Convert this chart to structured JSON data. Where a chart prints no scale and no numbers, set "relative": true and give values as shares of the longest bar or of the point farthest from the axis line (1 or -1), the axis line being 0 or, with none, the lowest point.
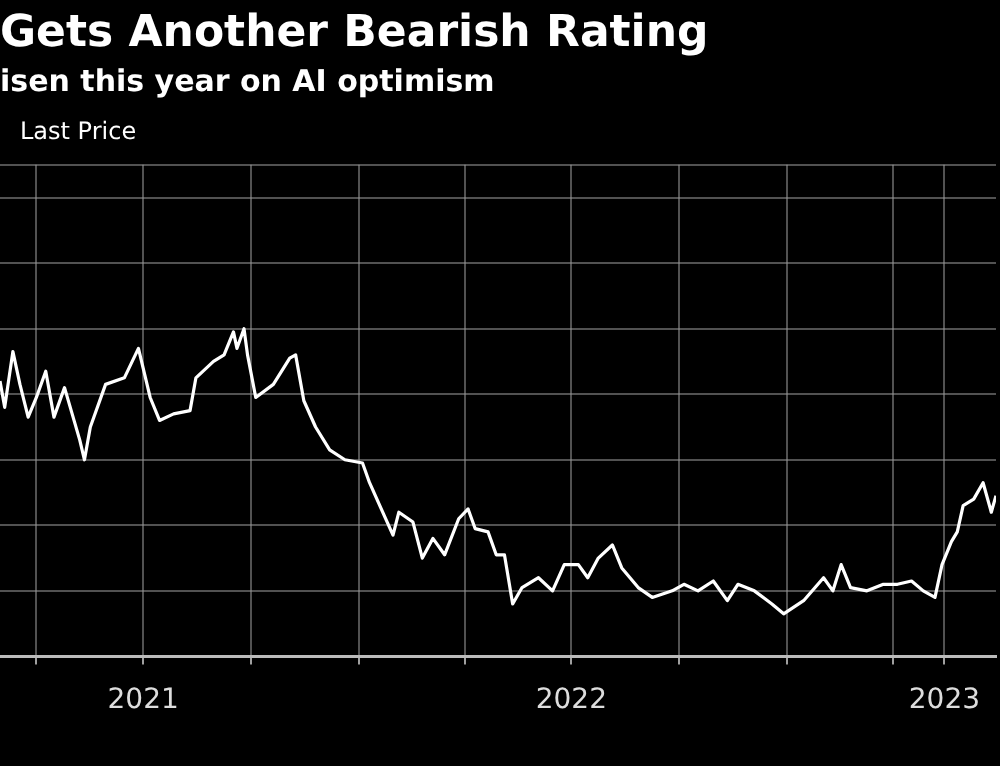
{
  "chart_data": {
    "type": "line",
    "title": "Gets Another Bearish Rating",
    "subtitle": "isen this year on AI optimism",
    "relative": true,
    "grid": true,
    "legend": "top left",
    "x": [
      "2021-03-01",
      "2021-03-05",
      "2021-03-12",
      "2021-03-18",
      "2021-03-25",
      "2021-04-01",
      "2021-04-09",
      "2021-04-16",
      "2021-04-25",
      "2021-05-08",
      "2021-05-12",
      "2021-05-17",
      "2021-05-30",
      "2021-06-15",
      "2021-06-27",
      "2021-07-07",
      "2021-07-15",
      "2021-07-27",
      "2021-08-10",
      "2021-08-15",
      "2021-08-30",
      "2021-09-08",
      "2021-09-16",
      "2021-09-19",
      "2021-09-25",
      "2021-09-28",
      "2021-10-05",
      "2021-10-20",
      "2021-11-03",
      "2021-11-08",
      "2021-11-15",
      "2021-11-25",
      "2021-12-07",
      "2021-12-20",
      "2022-01-04",
      "2022-01-10",
      "2022-01-30",
      "2022-02-04",
      "2022-02-16",
      "2022-02-24",
      "2022-03-05",
      "2022-03-15",
      "2022-03-27",
      "2022-04-04",
      "2022-04-10",
      "2022-04-21",
      "2022-04-28",
      "2022-05-05",
      "2022-05-12",
      "2022-05-20",
      "2022-06-03",
      "2022-06-15",
      "2022-06-25",
      "2022-07-07",
      "2022-07-15",
      "2022-07-24",
      "2022-08-05",
      "2022-08-13",
      "2022-08-27",
      "2022-09-08",
      "2022-09-25",
      "2022-10-05",
      "2022-10-17",
      "2022-10-30",
      "2022-11-11",
      "2022-11-20",
      "2022-12-04",
      "2022-12-19",
      "2022-12-29",
      "2023-01-15",
      "2023-02-01",
      "2023-02-09",
      "2023-02-16",
      "2023-02-24",
      "2023-03-10",
      "2023-03-24",
      "2023-04-05",
      "2023-04-17",
      "2023-04-27",
      "2023-05-07",
      "2023-05-13",
      "2023-05-21",
      "2023-05-26",
      "2023-05-31",
      "2023-06-09",
      "2023-06-17",
      "2023-06-24",
      "2023-06-28"
    ],
    "series": [
      {
        "name": "Last Price",
        "color": "#ffffff",
        "values": [
          0.84,
          0.76,
          0.93,
          0.83,
          0.73,
          0.79,
          0.87,
          0.73,
          0.82,
          0.66,
          0.6,
          0.7,
          0.83,
          0.85,
          0.94,
          0.79,
          0.72,
          0.74,
          0.75,
          0.85,
          0.9,
          0.92,
          0.99,
          0.94,
          1.0,
          0.92,
          0.79,
          0.83,
          0.91,
          0.92,
          0.78,
          0.7,
          0.63,
          0.6,
          0.59,
          0.53,
          0.37,
          0.44,
          0.41,
          0.3,
          0.36,
          0.31,
          0.42,
          0.45,
          0.39,
          0.38,
          0.31,
          0.31,
          0.16,
          0.21,
          0.24,
          0.2,
          0.28,
          0.28,
          0.24,
          0.3,
          0.34,
          0.27,
          0.21,
          0.18,
          0.2,
          0.22,
          0.2,
          0.23,
          0.17,
          0.22,
          0.2,
          0.16,
          0.13,
          0.17,
          0.24,
          0.2,
          0.28,
          0.21,
          0.2,
          0.22,
          0.22,
          0.23,
          0.2,
          0.18,
          0.28,
          0.35,
          0.38,
          0.46,
          0.48,
          0.53,
          0.44,
          0.49
        ]
      }
    ],
    "xlim": [
      "2021-03-01",
      "2023-06-28"
    ],
    "xticks": [
      {
        "value": "2021-04-01",
        "label": null
      },
      {
        "value": "2021-07-01",
        "label": "2021"
      },
      {
        "value": "2021-10-01",
        "label": null
      },
      {
        "value": "2022-01-01",
        "label": null
      },
      {
        "value": "2022-04-01",
        "label": null
      },
      {
        "value": "2022-07-01",
        "label": "2022"
      },
      {
        "value": "2022-10-01",
        "label": null
      },
      {
        "value": "2023-01-01",
        "label": null
      },
      {
        "value": "2023-04-01",
        "label": null
      },
      {
        "value": "2023-05-15",
        "label": "2023"
      }
    ]
  }
}
